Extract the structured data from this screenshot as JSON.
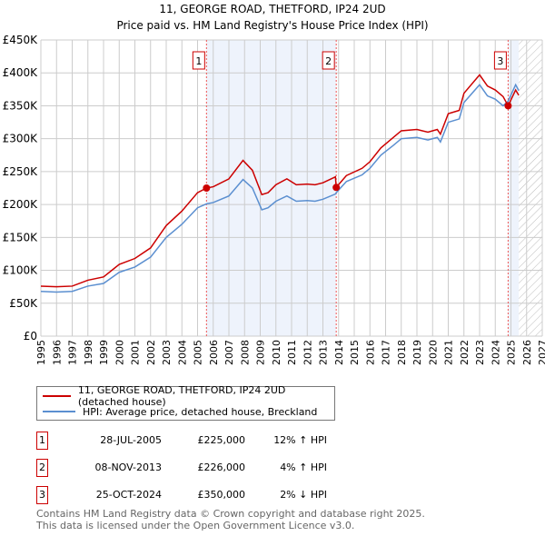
{
  "chart_data": {
    "type": "line",
    "title": "11, GEORGE ROAD, THETFORD, IP24 2UD",
    "subtitle": "Price paid vs. HM Land Registry's House Price Index (HPI)",
    "xlim": [
      1995,
      2027
    ],
    "ylim": [
      0,
      450000
    ],
    "yticks": [
      0,
      50000,
      100000,
      150000,
      200000,
      250000,
      300000,
      350000,
      400000,
      450000
    ],
    "ytick_labels": [
      "£0",
      "£50K",
      "£100K",
      "£150K",
      "£200K",
      "£250K",
      "£300K",
      "£350K",
      "£400K",
      "£450K"
    ],
    "xticks": [
      "1995",
      "1996",
      "1997",
      "1998",
      "1999",
      "2000",
      "2001",
      "2002",
      "2003",
      "2004",
      "2005",
      "2006",
      "2007",
      "2008",
      "2009",
      "2010",
      "2011",
      "2012",
      "2013",
      "2014",
      "2015",
      "2016",
      "2017",
      "2018",
      "2019",
      "2020",
      "2021",
      "2022",
      "2023",
      "2024",
      "2025",
      "2026",
      "2027"
    ],
    "grid": true,
    "x": [
      1995,
      1996,
      1997,
      1998,
      1999,
      2000,
      2001,
      2002,
      2003,
      2004,
      2005,
      2005.57,
      2006,
      2007,
      2007.9,
      2008.5,
      2009.1,
      2009.5,
      2010,
      2010.7,
      2011.3,
      2012,
      2012.5,
      2013,
      2013.8,
      2013.85,
      2014.5,
      2015.5,
      2016,
      2016.7,
      2017.5,
      2018,
      2019,
      2019.7,
      2020.3,
      2020.5,
      2021,
      2021.7,
      2022,
      2023,
      2023.5,
      2024,
      2024.5,
      2024.82,
      2025.3,
      2025.5
    ],
    "series": [
      {
        "name": "11, GEORGE ROAD, THETFORD, IP24 2UD (detached house)",
        "color": "#cc0000",
        "values": [
          76000,
          75000,
          76000,
          85000,
          90000,
          109000,
          118000,
          134000,
          168000,
          190000,
          218000,
          225000,
          227000,
          239000,
          267000,
          252000,
          215000,
          218000,
          230000,
          239000,
          230000,
          231000,
          230000,
          233000,
          242000,
          226000,
          244000,
          255000,
          265000,
          286000,
          302000,
          312000,
          314000,
          310000,
          314000,
          307000,
          338000,
          343000,
          369000,
          397000,
          380000,
          374000,
          364000,
          350000,
          374000,
          366000
        ]
      },
      {
        "name": "HPI: Average price, detached house, Breckland",
        "color": "#5b8fd0",
        "values": [
          68000,
          67000,
          68000,
          76000,
          80000,
          97000,
          105000,
          120000,
          150000,
          170000,
          195000,
          201000,
          203000,
          213000,
          238000,
          225000,
          192000,
          195000,
          205000,
          213000,
          205000,
          206000,
          205000,
          208000,
          216000,
          218000,
          235000,
          245000,
          255000,
          275000,
          290000,
          300000,
          302000,
          298000,
          302000,
          295000,
          325000,
          330000,
          355000,
          382000,
          365000,
          360000,
          350000,
          357000,
          382000,
          373000
        ]
      }
    ],
    "sales": [
      {
        "label": "1",
        "x": 2005.57,
        "date": "28-JUL-2005",
        "price": 225000,
        "price_label": "£225,000",
        "hpi": "12% ↑ HPI"
      },
      {
        "label": "2",
        "x": 2013.85,
        "date": "08-NOV-2013",
        "price": 226000,
        "price_label": "£226,000",
        "hpi": "4% ↑ HPI"
      },
      {
        "label": "3",
        "x": 2024.82,
        "date": "25-OCT-2024",
        "price": 350000,
        "price_label": "£350,000",
        "hpi": "2% ↓ HPI"
      }
    ],
    "shaded_periods": [
      [
        2005.57,
        2013.85
      ],
      [
        2024.82,
        2025.5
      ]
    ],
    "forecast_hatch_from": 2025.5,
    "legend_placement": "below"
  },
  "footer": [
    "Contains HM Land Registry data © Crown copyright and database right 2025.",
    "This data is licensed under the Open Government Licence v3.0."
  ]
}
